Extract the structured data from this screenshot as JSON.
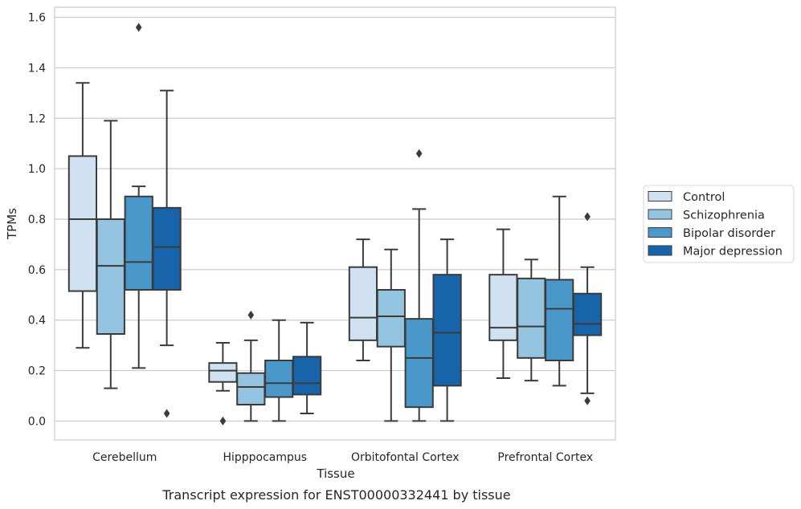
{
  "caption": "Transcript expression for ENST00000332441 by tissue",
  "chart_data": {
    "type": "box",
    "title": "",
    "xlabel": "Tissue",
    "ylabel": "TPMs",
    "ylim": [
      -0.075,
      1.64
    ],
    "yticks": [
      0.0,
      0.2,
      0.4,
      0.6,
      0.8,
      1.0,
      1.2,
      1.4,
      1.6
    ],
    "ytick_labels": [
      "0.0",
      "0.2",
      "0.4",
      "0.6",
      "0.8",
      "1.0",
      "1.2",
      "1.4",
      "1.6"
    ],
    "grid": "horizontal",
    "legend_position": "right",
    "categories": [
      "Cerebellum",
      "Hipppocampus",
      "Orbitofontal Cortex",
      "Prefrontal Cortex"
    ],
    "series": [
      {
        "name": "Control",
        "color": "#d0e1f2",
        "boxes": [
          {
            "whisker_low": 0.29,
            "q1": 0.515,
            "median": 0.8,
            "q3": 1.05,
            "whisker_high": 1.34,
            "outliers": []
          },
          {
            "whisker_low": 0.12,
            "q1": 0.155,
            "median": 0.2,
            "q3": 0.23,
            "whisker_high": 0.31,
            "outliers": [
              0.0
            ]
          },
          {
            "whisker_low": 0.24,
            "q1": 0.32,
            "median": 0.41,
            "q3": 0.61,
            "whisker_high": 0.72,
            "outliers": []
          },
          {
            "whisker_low": 0.17,
            "q1": 0.32,
            "median": 0.37,
            "q3": 0.58,
            "whisker_high": 0.76,
            "outliers": []
          }
        ]
      },
      {
        "name": "Schizophrenia",
        "color": "#94c4df",
        "boxes": [
          {
            "whisker_low": 0.13,
            "q1": 0.345,
            "median": 0.615,
            "q3": 0.8,
            "whisker_high": 1.19,
            "outliers": []
          },
          {
            "whisker_low": 0.0,
            "q1": 0.065,
            "median": 0.135,
            "q3": 0.19,
            "whisker_high": 0.32,
            "outliers": [
              0.42
            ]
          },
          {
            "whisker_low": 0.0,
            "q1": 0.295,
            "median": 0.415,
            "q3": 0.52,
            "whisker_high": 0.68,
            "outliers": []
          },
          {
            "whisker_low": 0.16,
            "q1": 0.25,
            "median": 0.375,
            "q3": 0.565,
            "whisker_high": 0.64,
            "outliers": []
          }
        ]
      },
      {
        "name": "Bipolar disorder",
        "color": "#4a98c9",
        "boxes": [
          {
            "whisker_low": 0.21,
            "q1": 0.52,
            "median": 0.63,
            "q3": 0.89,
            "whisker_high": 0.93,
            "outliers": [
              1.56
            ]
          },
          {
            "whisker_low": 0.0,
            "q1": 0.095,
            "median": 0.15,
            "q3": 0.24,
            "whisker_high": 0.4,
            "outliers": []
          },
          {
            "whisker_low": 0.0,
            "q1": 0.055,
            "median": 0.25,
            "q3": 0.405,
            "whisker_high": 0.84,
            "outliers": [
              1.06
            ]
          },
          {
            "whisker_low": 0.14,
            "q1": 0.24,
            "median": 0.445,
            "q3": 0.56,
            "whisker_high": 0.89,
            "outliers": []
          }
        ]
      },
      {
        "name": "Major depression",
        "color": "#1764ab",
        "boxes": [
          {
            "whisker_low": 0.3,
            "q1": 0.52,
            "median": 0.69,
            "q3": 0.845,
            "whisker_high": 1.31,
            "outliers": [
              0.03
            ]
          },
          {
            "whisker_low": 0.03,
            "q1": 0.105,
            "median": 0.15,
            "q3": 0.255,
            "whisker_high": 0.39,
            "outliers": []
          },
          {
            "whisker_low": 0.0,
            "q1": 0.14,
            "median": 0.35,
            "q3": 0.58,
            "whisker_high": 0.72,
            "outliers": []
          },
          {
            "whisker_low": 0.11,
            "q1": 0.34,
            "median": 0.385,
            "q3": 0.505,
            "whisker_high": 0.61,
            "outliers": [
              0.81,
              0.08
            ]
          }
        ]
      }
    ]
  }
}
